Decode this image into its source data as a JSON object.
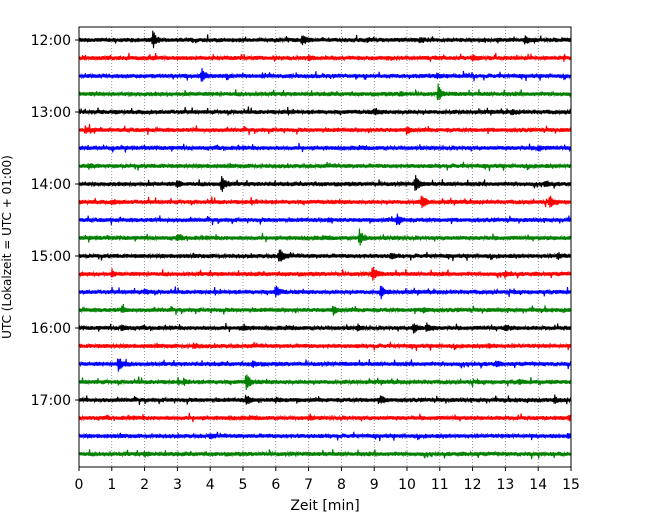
{
  "chart_data": {
    "type": "line",
    "title": "",
    "xlabel": "Zeit  [min]",
    "ylabel": "UTC (Lokalzeit = UTC + 01:00)",
    "xlim": [
      0,
      15
    ],
    "x_ticks": [
      "0",
      "1",
      "2",
      "3",
      "4",
      "5",
      "6",
      "7",
      "8",
      "9",
      "10",
      "11",
      "12",
      "13",
      "14",
      "15"
    ],
    "y_ticks": [
      "12:00",
      "13:00",
      "14:00",
      "15:00",
      "16:00",
      "17:00"
    ],
    "grid": "vertical dotted",
    "row_interval_min": 15,
    "start_time": "12:00",
    "colors": [
      "#000000",
      "#ff0000",
      "#0000ff",
      "#008000"
    ],
    "series": [
      {
        "time": "12:00",
        "color": "#000000",
        "events": [
          [
            2.25,
            1.0
          ],
          [
            6.8,
            0.6
          ],
          [
            13.6,
            0.4
          ],
          [
            10.4,
            0.3
          ]
        ]
      },
      {
        "time": "12:15",
        "color": "#ff0000",
        "events": [
          [
            12.0,
            0.4
          ],
          [
            7.0,
            0.2
          ]
        ]
      },
      {
        "time": "12:30",
        "color": "#0000ff",
        "events": [
          [
            3.75,
            0.8
          ],
          [
            10.9,
            0.2
          ]
        ]
      },
      {
        "time": "12:45",
        "color": "#008000",
        "events": [
          [
            10.95,
            1.0
          ],
          [
            9.8,
            0.2
          ]
        ]
      },
      {
        "time": "13:00",
        "color": "#000000",
        "events": [
          [
            9.0,
            0.3
          ],
          [
            13.2,
            0.2
          ]
        ]
      },
      {
        "time": "13:15",
        "color": "#ff0000",
        "events": [
          [
            0.2,
            0.4
          ],
          [
            10.0,
            0.3
          ]
        ]
      },
      {
        "time": "13:30",
        "color": "#0000ff",
        "events": [
          [
            14.0,
            0.3
          ]
        ]
      },
      {
        "time": "13:45",
        "color": "#008000",
        "events": [
          [
            0.3,
            0.2
          ]
        ]
      },
      {
        "time": "14:00",
        "color": "#000000",
        "events": [
          [
            4.35,
            1.0
          ],
          [
            10.25,
            0.95
          ],
          [
            3.0,
            0.35
          ],
          [
            14.2,
            0.35
          ]
        ]
      },
      {
        "time": "14:15",
        "color": "#ff0000",
        "events": [
          [
            10.45,
            1.0
          ],
          [
            14.35,
            0.6
          ],
          [
            1.0,
            0.2
          ]
        ]
      },
      {
        "time": "14:30",
        "color": "#0000ff",
        "events": [
          [
            9.7,
            0.7
          ],
          [
            7.6,
            0.2
          ]
        ]
      },
      {
        "time": "14:45",
        "color": "#008000",
        "events": [
          [
            8.55,
            1.0
          ],
          [
            3.0,
            0.25
          ]
        ]
      },
      {
        "time": "15:00",
        "color": "#000000",
        "events": [
          [
            6.1,
            1.0
          ],
          [
            14.6,
            0.35
          ],
          [
            9.5,
            0.3
          ]
        ]
      },
      {
        "time": "15:15",
        "color": "#ff0000",
        "events": [
          [
            8.95,
            1.0
          ],
          [
            13.0,
            0.3
          ],
          [
            1.0,
            0.25
          ]
        ]
      },
      {
        "time": "15:30",
        "color": "#0000ff",
        "events": [
          [
            6.0,
            0.7
          ],
          [
            9.2,
            0.8
          ],
          [
            2.0,
            0.25
          ]
        ]
      },
      {
        "time": "15:45",
        "color": "#008000",
        "events": [
          [
            1.3,
            0.3
          ],
          [
            7.75,
            0.4
          ],
          [
            10.5,
            0.25
          ]
        ]
      },
      {
        "time": "16:00",
        "color": "#000000",
        "events": [
          [
            10.2,
            0.6
          ],
          [
            10.6,
            0.5
          ],
          [
            1.3,
            0.3
          ],
          [
            5.0,
            0.3
          ],
          [
            13.0,
            0.3
          ],
          [
            8.5,
            0.3
          ]
        ]
      },
      {
        "time": "16:15",
        "color": "#ff0000",
        "events": [
          [
            12.5,
            0.2
          ],
          [
            3.5,
            0.2
          ]
        ]
      },
      {
        "time": "16:30",
        "color": "#0000ff",
        "events": [
          [
            1.2,
            0.9
          ],
          [
            5.3,
            0.3
          ],
          [
            12.7,
            0.25
          ]
        ]
      },
      {
        "time": "16:45",
        "color": "#008000",
        "events": [
          [
            5.1,
            1.0
          ],
          [
            3.2,
            0.3
          ],
          [
            13.4,
            0.2
          ]
        ]
      },
      {
        "time": "17:00",
        "color": "#000000",
        "events": [
          [
            5.1,
            0.6
          ],
          [
            9.2,
            0.4
          ],
          [
            14.5,
            0.3
          ],
          [
            6.0,
            0.2
          ]
        ]
      },
      {
        "time": "17:15",
        "color": "#ff0000",
        "events": [
          [
            14.95,
            0.35
          ],
          [
            7.0,
            0.2
          ]
        ]
      },
      {
        "time": "17:30",
        "color": "#0000ff",
        "events": [
          [
            14.9,
            0.35
          ],
          [
            4.0,
            0.2
          ]
        ]
      },
      {
        "time": "17:45",
        "color": "#008000",
        "events": [
          [
            2.0,
            0.2
          ]
        ]
      }
    ]
  }
}
